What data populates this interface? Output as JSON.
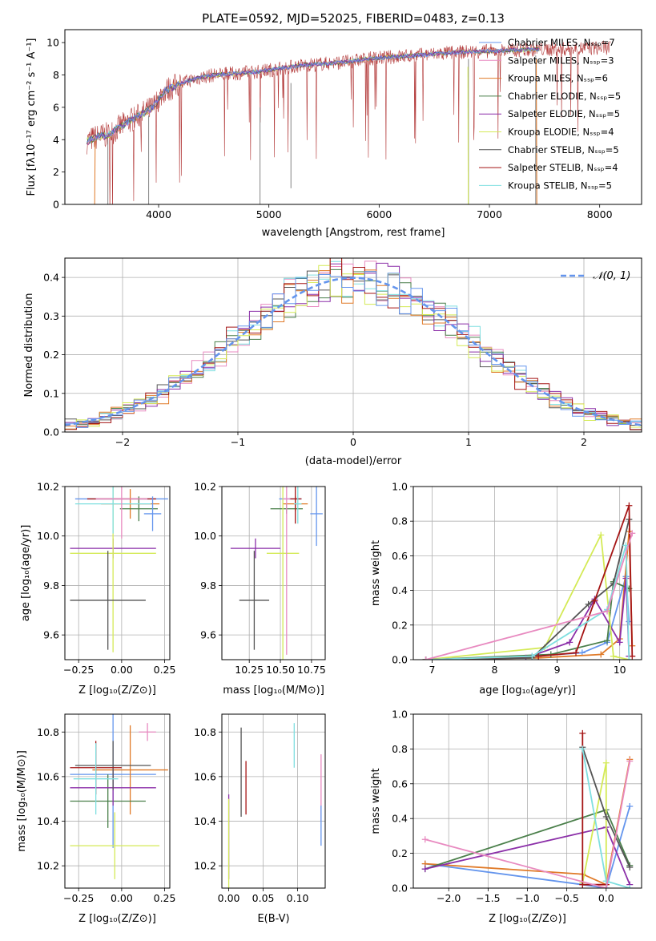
{
  "colors": [
    "#6495ed",
    "#e07a28",
    "#4a7f4a",
    "#8b2fa8",
    "#d4ea56",
    "#555555",
    "#a51515",
    "#7fdfe0",
    "#e88ac0"
  ],
  "panels": {
    "spectrum": {
      "title": "PLATE=0592, MJD=52025, FIBERID=0483, z=0.13",
      "xlabel": "wavelength [Angstrom, rest frame]",
      "ylabel": "Flux [fλ10⁻¹⁷ erg cm⁻² s⁻¹ A⁻¹]",
      "legend": [
        {
          "label": "Chabrier MILES, Nₛₛₚ=7",
          "color": "#6495ed"
        },
        {
          "label": "Salpeter MILES, Nₛₛₚ=3",
          "color": "#e88ac0"
        },
        {
          "label": "Kroupa MILES, Nₛₛₚ=6",
          "color": "#e07a28"
        },
        {
          "label": "Chabrier ELODIE, Nₛₛₚ=5",
          "color": "#4a7f4a"
        },
        {
          "label": "Salpeter ELODIE, Nₛₛₚ=5",
          "color": "#8b2fa8"
        },
        {
          "label": "Kroupa ELODIE, Nₛₛₚ=4",
          "color": "#d4ea56"
        },
        {
          "label": "Chabrier STELIB, Nₛₛₚ=5",
          "color": "#555555"
        },
        {
          "label": "Salpeter STELIB, Nₛₛₚ=4",
          "color": "#a51515"
        },
        {
          "label": "Kroupa STELIB, Nₛₛₚ=5",
          "color": "#7fdfe0"
        }
      ]
    },
    "residuals": {
      "xlabel": "(data-model)/error",
      "ylabel": "Normed distribution",
      "legend": "𝒩(0, 1)"
    },
    "age_vs_Z": {
      "xlabel": "Z [log₁₀(Z/Z⊙)]",
      "ylabel": "age  [log₁₀(age/yr)]"
    },
    "age_vs_mass": {
      "xlabel": "mass [log₁₀(M/M⊙)]"
    },
    "weight_vs_age": {
      "xlabel": "age  [log₁₀(age/yr)]",
      "ylabel": "mass weight"
    },
    "mass_vs_Z": {
      "xlabel": "Z [log₁₀(Z/Z⊙)]",
      "ylabel": "mass [log₁₀(M/M⊙)]"
    },
    "mass_vs_ebv": {
      "xlabel": "E(B-V)"
    },
    "weight_vs_Z": {
      "xlabel": "Z [log₁₀(Z/Z⊙)]",
      "ylabel": "mass weight"
    }
  },
  "chart_data": [
    {
      "type": "line",
      "title": "PLATE=0592, MJD=52025, FIBERID=0483, z=0.13",
      "xlabel": "wavelength [Angstrom, rest frame]",
      "ylabel": "Flux [fλ10⁻¹⁷ erg cm⁻² s⁻¹ A⁻¹]",
      "xlim": [
        3150,
        8380
      ],
      "ylim": [
        0,
        10.8
      ],
      "xticks": [
        4000,
        5000,
        6000,
        7000,
        8000
      ],
      "yticks": [
        0,
        2,
        4,
        6,
        8,
        10
      ],
      "x": [
        3350,
        3450,
        3550,
        3650,
        3750,
        3850,
        3950,
        4050,
        4150,
        4250,
        4350,
        4500,
        4700,
        4900,
        5100,
        5300,
        5500,
        5700,
        5900,
        6100,
        6300,
        6500,
        6700,
        6900,
        7100,
        7300,
        7500,
        7700,
        7900,
        8100
      ],
      "series": [
        {
          "values": [
            3.9,
            4.2,
            4.3,
            4.8,
            5.2,
            5.6,
            6.0,
            7.0,
            7.3,
            7.6,
            7.8,
            8.0,
            8.1,
            8.2,
            8.4,
            8.6,
            8.7,
            8.8,
            9.0,
            9.1,
            9.2,
            9.3,
            9.4,
            9.45,
            9.5,
            9.55,
            9.6,
            9.6,
            9.65,
            9.7
          ]
        }
      ],
      "grid": false,
      "legend_position": "top-right"
    },
    {
      "type": "bar",
      "xlabel": "(data-model)/error",
      "ylabel": "Normed distribution",
      "xlim": [
        -2.5,
        2.5
      ],
      "ylim": [
        0,
        0.45
      ],
      "xticks": [
        -2,
        -1,
        0,
        1,
        2
      ],
      "yticks": [
        0.0,
        0.1,
        0.2,
        0.3,
        0.4
      ],
      "bin_width": 0.1,
      "gaussian_mean": 0,
      "gaussian_sigma": 1,
      "grid": true,
      "legend_position": "top-right"
    },
    {
      "type": "scatter",
      "xlabel": "Z [log₁₀(Z/Z⊙)]",
      "ylabel": "age  [log₁₀(age/yr)]",
      "xlim": [
        -0.33,
        0.28
      ],
      "ylim": [
        9.5,
        10.2
      ],
      "xticks": [
        -0.25,
        0.0,
        0.25
      ],
      "yticks": [
        9.6,
        9.8,
        10.0,
        10.2
      ],
      "points": [
        {
          "x": 0.0,
          "y": 10.15,
          "xerr": 0.27,
          "yerr": 0.0
        },
        {
          "x": 0.05,
          "y": 10.13,
          "xerr": 0.17,
          "yerr": 0.06
        },
        {
          "x": 0.1,
          "y": 10.11,
          "xerr": 0.11,
          "yerr": 0.05
        },
        {
          "x": -0.05,
          "y": 9.95,
          "xerr": 0.25,
          "yerr": 0.04
        },
        {
          "x": -0.05,
          "y": 9.93,
          "xerr": 0.25,
          "yerr": 0.4
        },
        {
          "x": -0.08,
          "y": 9.74,
          "xerr": 0.22,
          "yerr": 0.2
        },
        {
          "x": 0.0,
          "y": 10.15,
          "xerr": 0.2,
          "yerr": 0.0
        },
        {
          "x": -0.05,
          "y": 10.13,
          "xerr": 0.22,
          "yerr": 0.12
        },
        {
          "x": 0.0,
          "y": 10.15,
          "xerr": 0.15,
          "yerr": 0.16
        },
        {
          "x": 0.18,
          "y": 10.09,
          "xerr": 0.05,
          "yerr": 0.07
        }
      ],
      "grid": true
    },
    {
      "type": "scatter",
      "xlabel": "mass [log₁₀(M/M⊙)]",
      "xlim": [
        10.03,
        10.86
      ],
      "ylim": [
        9.5,
        10.2
      ],
      "xticks": [
        10.25,
        10.5,
        10.75
      ],
      "yticks": [
        9.6,
        9.8,
        10.0,
        10.2
      ],
      "points": [
        {
          "x": 10.58,
          "y": 10.15,
          "xerr": 0.09,
          "yerr": 0.0
        },
        {
          "x": 10.62,
          "y": 10.13,
          "xerr": 0.1,
          "yerr": 0.03
        },
        {
          "x": 10.55,
          "y": 10.11,
          "xerr": 0.13,
          "yerr": 0.02
        },
        {
          "x": 10.3,
          "y": 9.95,
          "xerr": 0.2,
          "yerr": 0.04
        },
        {
          "x": 10.52,
          "y": 9.93,
          "xerr": 0.13,
          "yerr": 0.43
        },
        {
          "x": 10.29,
          "y": 9.74,
          "xerr": 0.12,
          "yerr": 0.2
        },
        {
          "x": 10.62,
          "y": 10.15,
          "xerr": 0.05,
          "yerr": 0.1
        },
        {
          "x": 10.64,
          "y": 10.13,
          "xerr": 0.03,
          "yerr": 0.08
        },
        {
          "x": 10.55,
          "y": 10.15,
          "xerr": 0.03,
          "yerr": 0.63
        },
        {
          "x": 10.79,
          "y": 10.09,
          "xerr": 0.05,
          "yerr": 0.13
        }
      ],
      "grid": true
    },
    {
      "type": "line",
      "xlabel": "age  [log₁₀(age/yr)]",
      "ylabel": "mass weight",
      "xlim": [
        6.7,
        10.35
      ],
      "ylim": [
        0,
        1.0
      ],
      "xticks": [
        7,
        8,
        9,
        10
      ],
      "yticks": [
        0.0,
        0.2,
        0.4,
        0.6,
        0.8,
        1.0
      ],
      "series": [
        {
          "x": [
            6.9,
            8.6,
            9.4,
            9.8,
            10.1,
            10.15
          ],
          "values": [
            0.0,
            0.02,
            0.04,
            0.1,
            0.48,
            0.22
          ]
        },
        {
          "x": [
            6.9,
            8.7,
            9.7,
            10.0,
            10.15,
            10.2
          ],
          "values": [
            0.0,
            0.01,
            0.03,
            0.12,
            0.74,
            0.08
          ]
        },
        {
          "x": [
            6.9,
            8.9,
            9.8,
            9.9,
            10.15
          ],
          "values": [
            0.0,
            0.03,
            0.11,
            0.45,
            0.41
          ]
        },
        {
          "x": [
            6.9,
            8.5,
            9.2,
            9.6,
            10.0,
            10.1,
            10.15
          ],
          "values": [
            0.0,
            0.01,
            0.1,
            0.35,
            0.1,
            0.47,
            0.02
          ]
        },
        {
          "x": [
            6.9,
            8.8,
            9.7,
            9.9,
            10.15
          ],
          "values": [
            0.0,
            0.07,
            0.72,
            0.02,
            0.0
          ]
        },
        {
          "x": [
            6.9,
            8.6,
            9.5,
            9.9,
            10.15
          ],
          "values": [
            0.0,
            0.01,
            0.32,
            0.44,
            0.81
          ]
        },
        {
          "x": [
            6.9,
            8.7,
            9.3,
            9.6,
            10.15,
            10.2
          ],
          "values": [
            0.0,
            0.02,
            0.04,
            0.34,
            0.89,
            0.02
          ]
        },
        {
          "x": [
            6.9,
            8.6,
            9.8,
            10.1,
            10.15
          ],
          "values": [
            0.0,
            0.02,
            0.29,
            0.66,
            0.0
          ]
        },
        {
          "x": [
            6.9,
            9.8,
            10.2
          ],
          "values": [
            0.0,
            0.28,
            0.73
          ]
        }
      ],
      "grid": true
    },
    {
      "type": "scatter",
      "xlabel": "Z [log₁₀(Z/Z⊙)]",
      "ylabel": "mass [log₁₀(M/M⊙)]",
      "xlim": [
        -0.33,
        0.28
      ],
      "ylim": [
        10.1,
        10.88
      ],
      "xticks": [
        -0.25,
        0.0,
        0.25
      ],
      "yticks": [
        10.2,
        10.4,
        10.6,
        10.8
      ],
      "points": [
        {
          "x": -0.05,
          "y": 10.61,
          "xerr": 0.25,
          "yerr": 0.33
        },
        {
          "x": 0.05,
          "y": 10.63,
          "xerr": 0.22,
          "yerr": 0.2
        },
        {
          "x": -0.08,
          "y": 10.49,
          "xerr": 0.22,
          "yerr": 0.12
        },
        {
          "x": -0.05,
          "y": 10.55,
          "xerr": 0.25,
          "yerr": 0.08
        },
        {
          "x": -0.04,
          "y": 10.29,
          "xerr": 0.26,
          "yerr": 0.15
        },
        {
          "x": -0.05,
          "y": 10.65,
          "xerr": 0.22,
          "yerr": 0.11
        },
        {
          "x": -0.15,
          "y": 10.64,
          "xerr": 0.15,
          "yerr": 0.12
        },
        {
          "x": -0.15,
          "y": 10.59,
          "xerr": 0.13,
          "yerr": 0.16
        },
        {
          "x": 0.15,
          "y": 10.8,
          "xerr": 0.05,
          "yerr": 0.04
        }
      ],
      "grid": true
    },
    {
      "type": "scatter",
      "xlabel": "E(B-V)",
      "xlim": [
        -0.01,
        0.14
      ],
      "ylim": [
        10.1,
        10.88
      ],
      "xticks": [
        0.0,
        0.05,
        0.1
      ],
      "yticks": [
        10.2,
        10.4,
        10.6,
        10.8
      ],
      "points": [
        {
          "x": 0.0,
          "y": 10.33,
          "yerr": 0.19
        },
        {
          "x": 0.0,
          "y": 10.3,
          "yerr": 0.2
        },
        {
          "x": 0.018,
          "y": 10.62,
          "yerr": 0.2
        },
        {
          "x": 0.025,
          "y": 10.55,
          "yerr": 0.12
        },
        {
          "x": 0.095,
          "y": 10.74,
          "yerr": 0.1
        },
        {
          "x": 0.134,
          "y": 10.55,
          "yerr": 0.15
        },
        {
          "x": 0.134,
          "y": 10.38,
          "yerr": 0.09
        }
      ],
      "grid": true
    },
    {
      "type": "line",
      "xlabel": "Z [log₁₀(Z/Z⊙)]",
      "ylabel": "mass weight",
      "xlim": [
        -2.45,
        0.45
      ],
      "ylim": [
        0,
        1.0
      ],
      "xticks": [
        -2.0,
        -1.5,
        -1.0,
        -0.5,
        0.0
      ],
      "yticks": [
        0.0,
        0.2,
        0.4,
        0.6,
        0.8,
        1.0
      ],
      "series": [
        {
          "x": [
            -2.3,
            -0.3,
            0.0,
            0.3
          ],
          "values": [
            0.14,
            0.02,
            0.0,
            0.47
          ]
        },
        {
          "x": [
            -2.3,
            -0.3,
            0.0,
            0.3
          ],
          "values": [
            0.14,
            0.08,
            0.02,
            0.74
          ]
        },
        {
          "x": [
            -2.3,
            0.0,
            0.3
          ],
          "values": [
            0.11,
            0.45,
            0.13
          ]
        },
        {
          "x": [
            -2.3,
            0.0,
            0.3
          ],
          "values": [
            0.11,
            0.35,
            0.02
          ]
        },
        {
          "x": [
            -0.3,
            0.0,
            0.0
          ],
          "values": [
            0.03,
            0.72,
            0.04
          ]
        },
        {
          "x": [
            -0.3,
            0.0,
            0.3
          ],
          "values": [
            0.81,
            0.41,
            0.12
          ]
        },
        {
          "x": [
            -0.3,
            -0.3,
            0.0
          ],
          "values": [
            0.89,
            0.02,
            0.02
          ]
        },
        {
          "x": [
            -0.3,
            0.0,
            0.3
          ],
          "values": [
            0.8,
            0.04,
            0.0
          ]
        },
        {
          "x": [
            -2.3,
            0.0,
            0.3
          ],
          "values": [
            0.28,
            0.0,
            0.73
          ]
        }
      ],
      "grid": true
    }
  ]
}
